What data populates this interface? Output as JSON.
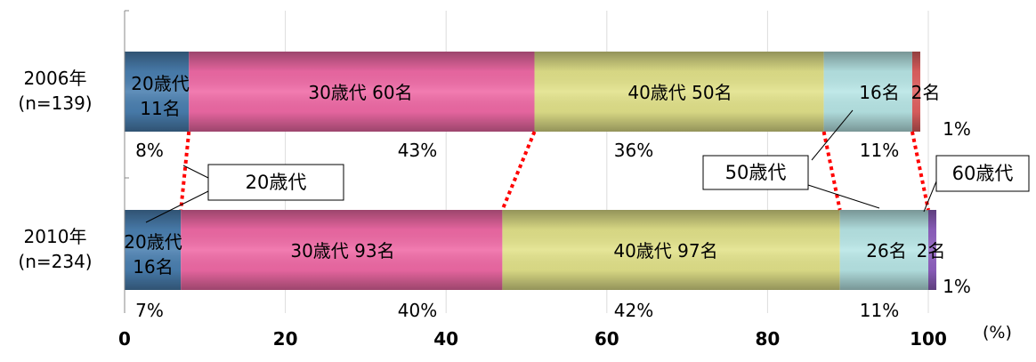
{
  "chart_data": {
    "type": "bar",
    "orientation": "horizontal",
    "stacked": true,
    "normalized": true,
    "title": "",
    "xlabel": "",
    "ylabel": "",
    "unit_label": "(%)",
    "xlim": [
      0,
      100
    ],
    "x_ticks": [
      "0",
      "20",
      "40",
      "60",
      "80",
      "100"
    ],
    "grid": true,
    "categories": [
      {
        "year": "2006年",
        "n": "(n=139)"
      },
      {
        "year": "2010年",
        "n": "(n=234)"
      }
    ],
    "series": [
      {
        "name": "20歳代",
        "color": "#4a7fb0",
        "values": [
          8,
          7
        ],
        "counts": [
          "11名",
          "16名"
        ],
        "inside_labels": [
          "20歳代\n11名",
          "20歳代\n16名"
        ],
        "pct_labels": [
          "8%",
          "7%"
        ]
      },
      {
        "name": "30歳代",
        "color": "#f06aa6",
        "values": [
          43,
          40
        ],
        "counts": [
          "60名",
          "93名"
        ],
        "inside_labels": [
          "30歳代 60名",
          "30歳代 93名"
        ],
        "pct_labels": [
          "43%",
          "40%"
        ]
      },
      {
        "name": "40歳代",
        "color": "#e2e28a",
        "values": [
          36,
          42
        ],
        "counts": [
          "50名",
          "97名"
        ],
        "inside_labels": [
          "40歳代 50名",
          "40歳代 97名"
        ],
        "pct_labels": [
          "36%",
          "42%"
        ]
      },
      {
        "name": "50歳代",
        "color": "#b8e6e6",
        "values": [
          11,
          11
        ],
        "counts": [
          "16名",
          "26名"
        ],
        "inside_labels": [
          "16名",
          "26名"
        ],
        "pct_labels": [
          "11%",
          "11%"
        ]
      },
      {
        "name": "60歳代",
        "color_2006": "#e06060",
        "color": "#8f60c0",
        "values": [
          1,
          1
        ],
        "counts": [
          "2名",
          "2名"
        ],
        "inside_labels": [
          "2名",
          "2名"
        ],
        "pct_labels": [
          "1%",
          "1%"
        ]
      }
    ],
    "callouts": [
      "20歳代",
      "50歳代",
      "60歳代"
    ]
  }
}
